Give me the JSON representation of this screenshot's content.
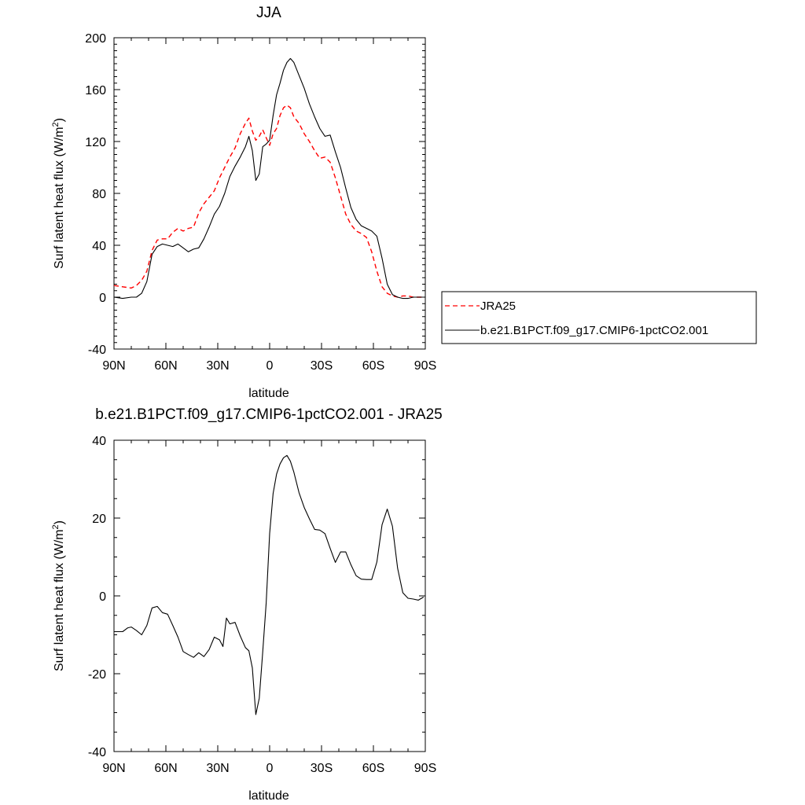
{
  "chart_data": [
    {
      "type": "line",
      "title": "JJA",
      "xlabel": "latitude",
      "ylabel_main": "Surf latent heat flux (W/m",
      "ylabel_sup": "2",
      "ylabel_close": ")",
      "xlim": [
        90,
        -90
      ],
      "ylim": [
        -40,
        200
      ],
      "xticks": [
        90,
        60,
        30,
        0,
        -30,
        -60,
        -90
      ],
      "xtick_labels": [
        "90N",
        "60N",
        "30N",
        "0",
        "30S",
        "60S",
        "90S"
      ],
      "yticks": [
        -40,
        0,
        40,
        80,
        120,
        160,
        200
      ],
      "ytick_labels": [
        "-40",
        "0",
        "40",
        "80",
        "120",
        "160",
        "200"
      ],
      "legend_position": "right",
      "series": [
        {
          "name": "JRA25",
          "color": "#ff0000",
          "style": "dashed",
          "x": [
            90,
            85,
            80,
            77,
            74,
            71,
            68,
            65,
            62,
            59,
            56,
            53,
            50,
            47,
            44,
            41,
            38,
            35,
            32,
            29,
            26,
            23,
            20,
            17,
            14,
            12,
            10,
            8,
            6,
            4,
            2,
            0,
            -2,
            -4,
            -6,
            -8,
            -10,
            -12,
            -14,
            -17,
            -20,
            -23,
            -26,
            -29,
            -32,
            -35,
            -38,
            -41,
            -44,
            -47,
            -50,
            -53,
            -56,
            -59,
            -62,
            -65,
            -68,
            -71,
            -74,
            -77,
            -80,
            -83,
            -86,
            -89
          ],
          "y": [
            9,
            8,
            7,
            9,
            13,
            20,
            36,
            44,
            45,
            45,
            50,
            53,
            51,
            53,
            54,
            65,
            72,
            77,
            82,
            92,
            100,
            108,
            115,
            126,
            134,
            138,
            128,
            121,
            124,
            129,
            123,
            117,
            126,
            130,
            140,
            146,
            148,
            146,
            139,
            134,
            126,
            120,
            113,
            107,
            108,
            104,
            92,
            78,
            64,
            56,
            51,
            49,
            46,
            35,
            20,
            8,
            3,
            1,
            0,
            1,
            1,
            0,
            0,
            0
          ]
        },
        {
          "name": "b.e21.B1PCT.f09_g17.CMIP6-1pctCO2.001",
          "color": "#000000",
          "style": "solid",
          "x": [
            90,
            85,
            80,
            77,
            74,
            71,
            68,
            65,
            62,
            59,
            56,
            53,
            50,
            47,
            44,
            41,
            38,
            35,
            32,
            29,
            26,
            23,
            20,
            17,
            14,
            12,
            10,
            8,
            6,
            4,
            2,
            0,
            -2,
            -4,
            -6,
            -8,
            -10,
            -12,
            -14,
            -17,
            -20,
            -23,
            -26,
            -29,
            -32,
            -35,
            -38,
            -41,
            -44,
            -47,
            -50,
            -53,
            -56,
            -59,
            -62,
            -65,
            -68,
            -71,
            -74,
            -77,
            -80,
            -83,
            -86,
            -89
          ],
          "y": [
            0,
            -1,
            0,
            0,
            3,
            12,
            33,
            39,
            41,
            40,
            39,
            41,
            38,
            35,
            37,
            38,
            45,
            54,
            64,
            70,
            80,
            93,
            101,
            108,
            116,
            124,
            113,
            90,
            95,
            116,
            118,
            121,
            140,
            156,
            165,
            175,
            181,
            184,
            181,
            171,
            161,
            149,
            139,
            130,
            124,
            125,
            112,
            100,
            84,
            69,
            60,
            55,
            53,
            51,
            47,
            30,
            10,
            2,
            0,
            -1,
            -1,
            0,
            0,
            0
          ]
        }
      ]
    },
    {
      "type": "line",
      "title": "b.e21.B1PCT.f09_g17.CMIP6-1pctCO2.001 - JRA25",
      "xlabel": "latitude",
      "ylabel_main": "Surf latent heat flux (W/m",
      "ylabel_sup": "2",
      "ylabel_close": ")",
      "xlim": [
        90,
        -90
      ],
      "ylim": [
        -40,
        40
      ],
      "xticks": [
        90,
        60,
        30,
        0,
        -30,
        -60,
        -90
      ],
      "xtick_labels": [
        "90N",
        "60N",
        "30N",
        "0",
        "30S",
        "60S",
        "90S"
      ],
      "yticks": [
        -40,
        -20,
        0,
        20,
        40
      ],
      "ytick_labels": [
        "-40",
        "-20",
        "0",
        "20",
        "40"
      ],
      "series": [
        {
          "color": "#000000",
          "style": "solid",
          "x": [
            90,
            85,
            82,
            80,
            77,
            74,
            71,
            68,
            65,
            62,
            59,
            56,
            53,
            50,
            47,
            44,
            41,
            38,
            35,
            32,
            29,
            27,
            25,
            23,
            20,
            17,
            14,
            12,
            10,
            8,
            6,
            4,
            2,
            0,
            -2,
            -4,
            -6,
            -8,
            -10,
            -12,
            -14,
            -17,
            -20,
            -23,
            -26,
            -29,
            -32,
            -35,
            -38,
            -41,
            -44,
            -47,
            -50,
            -53,
            -56,
            -59,
            -62,
            -65,
            -68,
            -71,
            -74,
            -77,
            -80,
            -83,
            -86,
            -89
          ],
          "y": [
            -9.2,
            -9.2,
            -8.2,
            -8,
            -8.9,
            -10,
            -7.6,
            -3.1,
            -2.7,
            -4.3,
            -4.7,
            -7.6,
            -10.6,
            -14.3,
            -15.1,
            -15.8,
            -14.6,
            -15.6,
            -13.8,
            -10.6,
            -11.3,
            -13,
            -5.7,
            -7.2,
            -6.8,
            -10.3,
            -13.3,
            -14.1,
            -18.5,
            -30.5,
            -26.3,
            -14.4,
            -1.8,
            16,
            26.3,
            31.3,
            33.9,
            35.5,
            36.1,
            34.6,
            31.8,
            26.5,
            22.7,
            19.8,
            17.1,
            16.9,
            16,
            12.2,
            8.6,
            11.3,
            11.3,
            8,
            5.2,
            4.3,
            4.2,
            4.2,
            8.7,
            18.3,
            22.3,
            17.9,
            7.1,
            0.8,
            -0.6,
            -0.8,
            -1.1,
            -0.3
          ]
        }
      ]
    }
  ]
}
